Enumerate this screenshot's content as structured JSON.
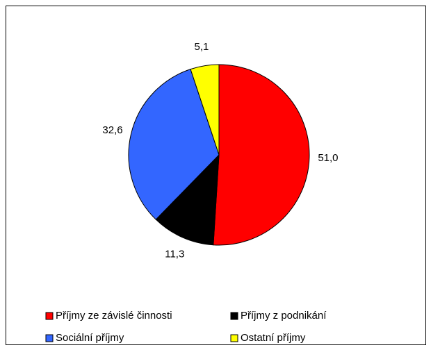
{
  "chart_data": {
    "type": "pie",
    "categories": [
      "Příjmy ze závislé činnosti",
      "Příjmy z podnikání",
      "Sociální příjmy",
      "Ostatní příjmy"
    ],
    "values": [
      51.0,
      11.3,
      32.6,
      5.1
    ],
    "value_labels": [
      "51,0",
      "11,3",
      "32,6",
      "5,1"
    ],
    "colors": [
      "#ff0000",
      "#000000",
      "#3366ff",
      "#ffff00"
    ],
    "legend": "bottom"
  }
}
